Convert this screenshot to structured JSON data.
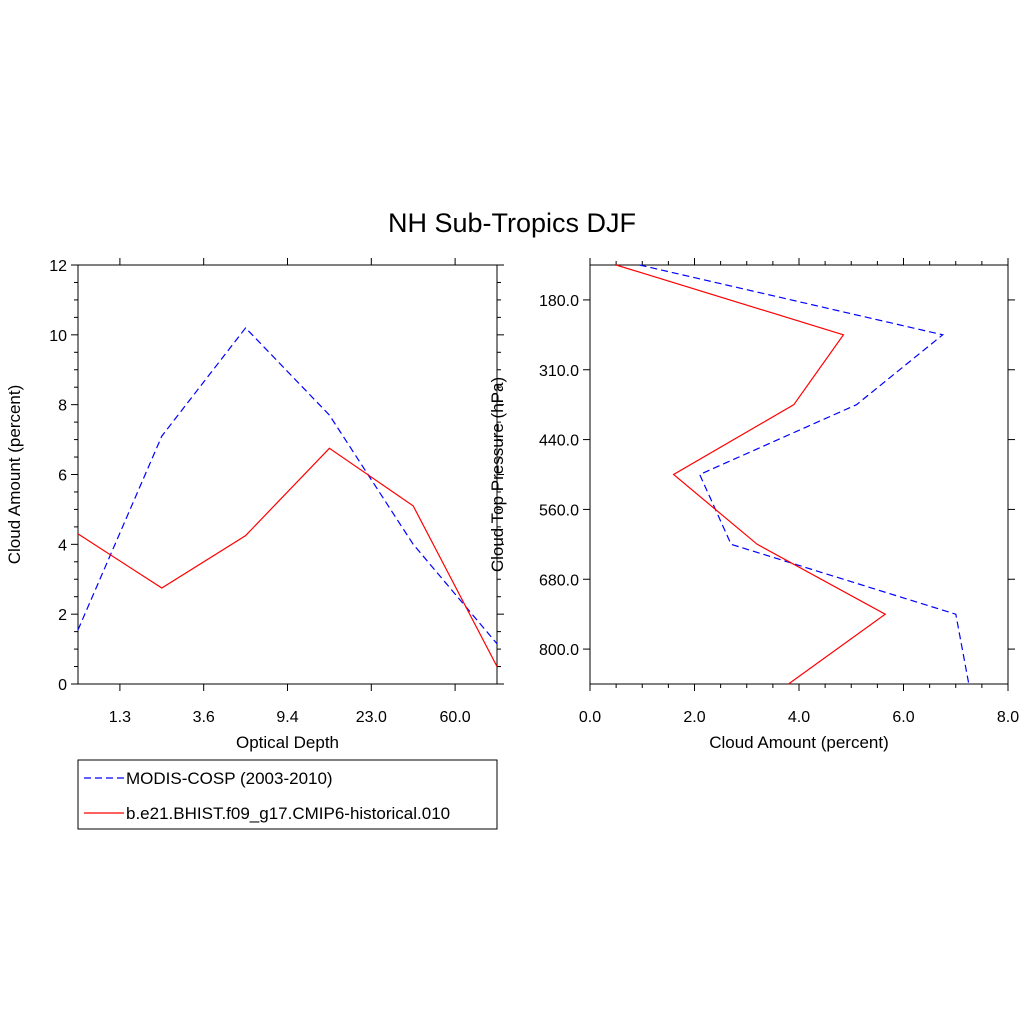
{
  "figure": {
    "title": "NH Sub-Tropics DJF"
  },
  "legend": {
    "placement": "bottom-left",
    "entries": [
      {
        "label": "MODIS-COSP (2003-2010)",
        "color": "#0000ff",
        "dash": "dashed"
      },
      {
        "label": "b.e21.BHIST.f09_g17.CMIP6-historical.010",
        "color": "#ff0000",
        "dash": "solid"
      }
    ]
  },
  "chart_data": [
    {
      "type": "line",
      "xlabel": "Optical Depth",
      "ylabel": "Cloud Amount (percent)",
      "xticks": [
        "1.3",
        "3.6",
        "9.4",
        "23.0",
        "60.0"
      ],
      "xticks_pos": [
        1,
        3,
        5,
        7,
        9
      ],
      "xlim": [
        0,
        10
      ],
      "ylim": [
        0,
        12
      ],
      "yticks": [
        0,
        2,
        4,
        6,
        8,
        10,
        12
      ],
      "grid": false,
      "x": [
        0,
        2,
        4,
        6,
        8,
        10
      ],
      "series": [
        {
          "name": "MODIS-COSP (2003-2010)",
          "color": "#0000ff",
          "dash": "dashed",
          "values": [
            1.55,
            7.1,
            10.2,
            7.7,
            4.0,
            1.15
          ]
        },
        {
          "name": "b.e21.BHIST.f09_g17.CMIP6-historical.010",
          "color": "#ff0000",
          "dash": "solid",
          "values": [
            4.3,
            2.75,
            4.25,
            6.75,
            5.1,
            0.5
          ]
        }
      ]
    },
    {
      "type": "line",
      "xlabel": "Cloud Amount (percent)",
      "ylabel": "Cloud Top Pressure (hPa)",
      "xlim": [
        0,
        8
      ],
      "xticks": [
        "0.0",
        "2.0",
        "4.0",
        "6.0",
        "8.0"
      ],
      "yticks": [
        "180.0",
        "310.0",
        "440.0",
        "560.0",
        "680.0",
        "800.0"
      ],
      "yticks_pos": [
        1,
        3,
        5,
        7,
        9,
        11
      ],
      "ylim": [
        0,
        12
      ],
      "grid": false,
      "y": [
        0,
        2,
        4,
        6,
        8,
        10,
        12
      ],
      "series": [
        {
          "name": "MODIS-COSP (2003-2010)",
          "color": "#0000ff",
          "dash": "dashed",
          "values": [
            0.95,
            6.75,
            5.1,
            2.1,
            2.7,
            7.0,
            7.25
          ]
        },
        {
          "name": "b.e21.BHIST.f09_g17.CMIP6-historical.010",
          "color": "#ff0000",
          "dash": "solid",
          "values": [
            0.5,
            4.85,
            3.9,
            1.6,
            3.2,
            5.65,
            3.8
          ]
        }
      ]
    }
  ]
}
